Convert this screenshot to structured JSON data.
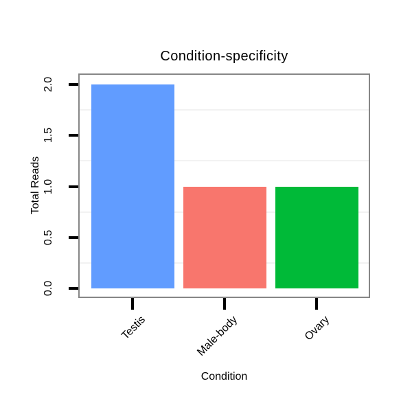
{
  "chart_data": {
    "type": "bar",
    "title": "Condition-specificity",
    "xlabel": "Condition",
    "ylabel": "Total Reads",
    "categories": [
      "Testis",
      "Male-body",
      "Ovary"
    ],
    "values": [
      2,
      1,
      1
    ],
    "series": [
      {
        "name": "Total Reads",
        "values": [
          2,
          1,
          1
        ]
      }
    ],
    "ylim": [
      0,
      2.1
    ],
    "y_ticks": [
      0,
      0.5,
      1,
      1.5,
      2
    ],
    "y_tick_labels": [
      "0.0",
      "0.5",
      "1.0",
      "1.5",
      "2.0"
    ],
    "y_minor_gridlines": [
      0.25,
      0.75,
      1.25,
      1.75
    ],
    "bar_colors": [
      "#619CFF",
      "#F8766D",
      "#00BA38"
    ],
    "legend_position": "none",
    "grid": "minor-horizontal-only"
  },
  "colors": {
    "background": "#ffffff",
    "panel_background": "#ffffff",
    "panel_border": "#868686",
    "grid_minor": "#f2f2f2",
    "tick": "#000000",
    "text": "#000000"
  }
}
